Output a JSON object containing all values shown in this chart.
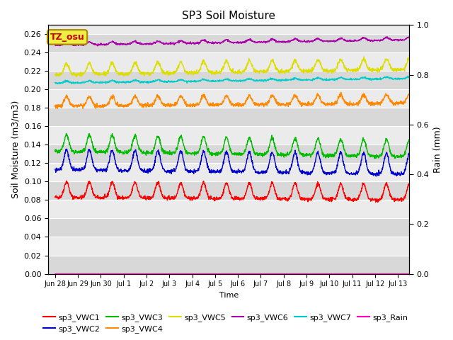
{
  "title": "SP3 Soil Moisture",
  "xlabel": "Time",
  "ylabel_left": "Soil Moisture (m3/m3)",
  "ylabel_right": "Rain (mm)",
  "ylim_left": [
    0.0,
    0.27
  ],
  "ylim_right": [
    0.0,
    1.0
  ],
  "yticks_left": [
    0.0,
    0.02,
    0.04,
    0.06,
    0.08,
    0.1,
    0.12,
    0.14,
    0.16,
    0.18,
    0.2,
    0.22,
    0.24,
    0.26
  ],
  "yticks_right": [
    0.0,
    0.2,
    0.4,
    0.6,
    0.8,
    1.0
  ],
  "annotation_text": "TZ_osu",
  "annotation_box_color": "#eeee44",
  "annotation_text_color": "#cc0000",
  "bg_color": "#ebebeb",
  "stripe_color": "#d8d8d8",
  "colors": {
    "sp3_VWC1": "#ff0000",
    "sp3_VWC2": "#0000cc",
    "sp3_VWC3": "#00bb00",
    "sp3_VWC4": "#ff8800",
    "sp3_VWC5": "#dddd00",
    "sp3_VWC6": "#aa00aa",
    "sp3_VWC7": "#00cccc",
    "sp3_Rain": "#ff00bb"
  },
  "x_tick_labels": [
    "Jun 28",
    "Jun 29",
    "Jun 30",
    "Jul 1",
    "Jul 2",
    "Jul 3",
    "Jul 4",
    "Jul 5",
    "Jul 6",
    "Jul 7",
    "Jul 8",
    "Jul 9",
    "Jul 10",
    "Jul 11",
    "Jul 12",
    "Jul 13"
  ],
  "x_tick_positions": [
    0,
    1,
    2,
    3,
    4,
    5,
    6,
    7,
    8,
    9,
    10,
    11,
    12,
    13,
    14,
    15
  ]
}
